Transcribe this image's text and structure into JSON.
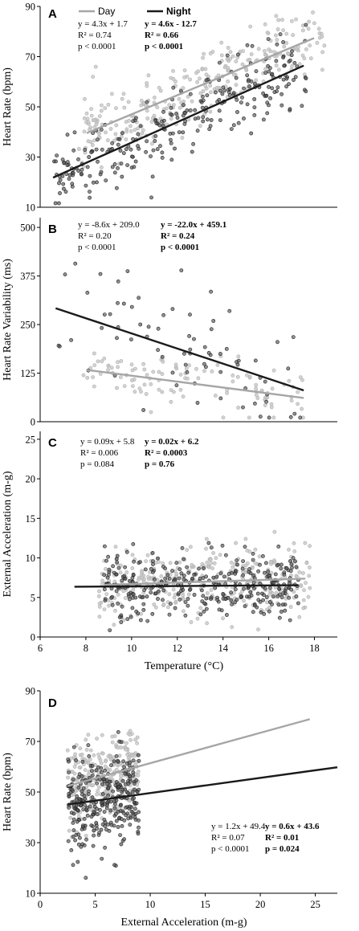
{
  "legend": {
    "day_label": "Day",
    "night_label": "Night"
  },
  "colors": {
    "day": "#a6a6a6",
    "night": "#1a1a1a",
    "day_point": "#c8c8c8",
    "night_point": "#555555",
    "axis": "#000000"
  },
  "chart_data": [
    {
      "panel": "A",
      "type": "scatter",
      "xlabel": "",
      "ylabel": "Heart Rate (bpm)",
      "xlim": [
        7,
        18.5
      ],
      "ylim": [
        10,
        90
      ],
      "yticks": [
        10,
        30,
        50,
        70,
        90
      ],
      "xticks": [],
      "x_ticklabels_shown": false,
      "stats": {
        "day": [
          "y = 4.3x + 1.7",
          "R² = 0.74",
          "p < 0.0001"
        ],
        "night": [
          "y = 4.6x - 12.7",
          "R² = 0.66",
          "p < 0.0001"
        ]
      },
      "series": [
        {
          "name": "Day",
          "slope": 4.3,
          "intercept": 1.7,
          "x_range": [
            8.8,
            17.6
          ],
          "x_spread": [
            8.5,
            18
          ],
          "noise": 7,
          "n": 280,
          "seed": 11
        },
        {
          "name": "Night",
          "slope": 4.6,
          "intercept": -12.7,
          "x_range": [
            7.5,
            17.2
          ],
          "x_spread": [
            7.5,
            17.3
          ],
          "noise": 7,
          "n": 280,
          "seed": 23
        }
      ]
    },
    {
      "panel": "B",
      "type": "scatter",
      "xlabel": "",
      "ylabel": "Heart Rate Variability (ms)",
      "xlim": [
        7,
        18.5
      ],
      "ylim": [
        0,
        525
      ],
      "yticks": [
        0,
        125,
        250,
        375,
        500
      ],
      "xticks": [],
      "x_ticklabels_shown": false,
      "stats": {
        "day": [
          "y = -8.6x + 209.0",
          "R² = 0.20",
          "p < 0.0001"
        ],
        "night": [
          "y = -22.0x + 459.1",
          "R² = 0.24",
          "p < 0.0001"
        ]
      },
      "series": [
        {
          "name": "Day",
          "slope": -8.6,
          "intercept": 209.0,
          "x_range": [
            8.8,
            17.2
          ],
          "x_spread": [
            8.5,
            17.2
          ],
          "noise": 35,
          "n": 110,
          "seed": 37
        },
        {
          "name": "Night",
          "slope": -22.0,
          "intercept": 459.1,
          "x_range": [
            7.6,
            17.2
          ],
          "x_spread": [
            7.6,
            17.2
          ],
          "noise": 80,
          "n": 75,
          "seed": 41
        }
      ]
    },
    {
      "panel": "C",
      "type": "scatter",
      "xlabel": "Temperature (°C)",
      "ylabel": "External Acceleration (m-g)",
      "xlim": [
        6,
        19
      ],
      "ylim": [
        0,
        26
      ],
      "yticks": [
        0,
        5,
        10,
        15,
        20,
        25
      ],
      "xticks": [
        6,
        8,
        10,
        12,
        14,
        16,
        18
      ],
      "x_ticklabels_shown": true,
      "stats": {
        "day": [
          "y = 0.09x + 5.8",
          "R² = 0.006",
          "p = 0.084"
        ],
        "night": [
          "y = 0.02x + 6.2",
          "R² = 0.0003",
          "p = 0.76"
        ]
      },
      "series": [
        {
          "name": "Day",
          "slope": 0.09,
          "intercept": 5.8,
          "x_range": [
            8.8,
            17.6
          ],
          "x_spread": [
            8.5,
            17.8
          ],
          "noise": 2.2,
          "n": 330,
          "seed": 53
        },
        {
          "name": "Night",
          "slope": 0.02,
          "intercept": 6.2,
          "x_range": [
            7.5,
            17.3
          ],
          "x_spread": [
            8.8,
            17.3
          ],
          "noise": 1.9,
          "n": 330,
          "seed": 67
        }
      ]
    },
    {
      "panel": "D",
      "type": "scatter",
      "xlabel": "External Acceleration (m-g)",
      "ylabel": "Heart Rate (bpm)",
      "xlim": [
        0,
        27
      ],
      "ylim": [
        10,
        90
      ],
      "yticks": [
        10,
        30,
        50,
        70,
        90
      ],
      "xticks": [
        0,
        5,
        10,
        15,
        20,
        25
      ],
      "x_ticklabels_shown": true,
      "stats": {
        "day": [
          "y = 1.2x + 49.4",
          "R² = 0.07",
          "p < 0.0001"
        ],
        "night": [
          "y = 0.6x + 43.6",
          "R² = 0.01",
          "p = 0.024"
        ]
      },
      "series": [
        {
          "name": "Day",
          "slope": 1.2,
          "intercept": 49.4,
          "x_range": [
            2.5,
            24.5
          ],
          "x_spread": [
            2.5,
            9
          ],
          "noise": 8,
          "n": 300,
          "seed": 71
        },
        {
          "name": "Night",
          "slope": 0.6,
          "intercept": 43.6,
          "x_range": [
            2.5,
            27
          ],
          "x_spread": [
            2.5,
            9
          ],
          "noise": 9,
          "n": 300,
          "seed": 83
        }
      ]
    }
  ]
}
